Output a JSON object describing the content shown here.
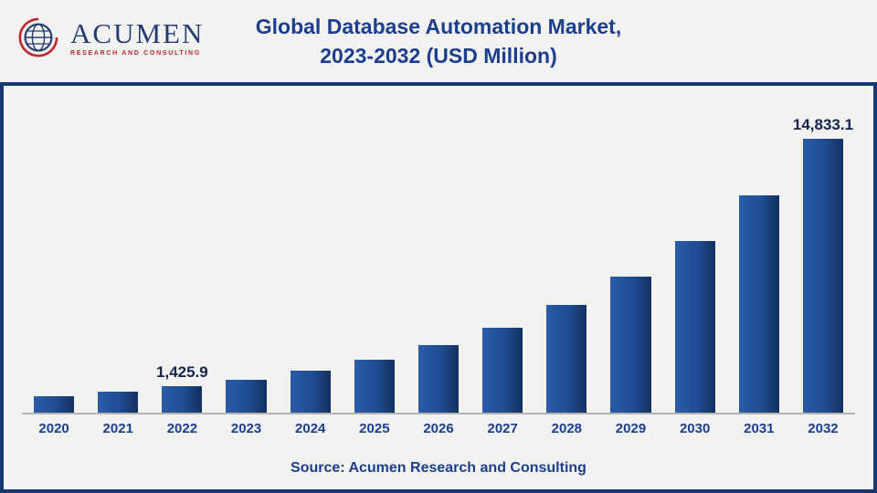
{
  "header": {
    "logo": {
      "name": "ACUMEN",
      "subtitle": "RESEARCH AND CONSULTING"
    },
    "title_line1": "Global Database Automation Market,",
    "title_line2": "2023-2032 (USD Million)"
  },
  "chart_data": {
    "type": "bar",
    "title": "Global Database Automation Market, 2023-2032 (USD Million)",
    "categories": [
      "2020",
      "2021",
      "2022",
      "2023",
      "2024",
      "2025",
      "2026",
      "2027",
      "2028",
      "2029",
      "2030",
      "2031",
      "2032"
    ],
    "values": [
      893,
      1129,
      1425.9,
      1802,
      2278,
      2880,
      3640,
      4601,
      5816,
      7351,
      9292,
      11745,
      14833.1
    ],
    "point_labels": [
      "",
      "",
      "1,425.9",
      "",
      "",
      "",
      "",
      "",
      "",
      "",
      "",
      "",
      "14,833.1"
    ],
    "xlabel": "",
    "ylabel": "",
    "units": "USD Million",
    "ylim": [
      0,
      15500
    ],
    "grid": false,
    "legend": false,
    "bar_color": "#1f4c92"
  },
  "footer": {
    "source": "Source: Acumen Research and Consulting"
  },
  "colors": {
    "background": "#f2f2f0",
    "navy": "#1c3e8f",
    "border": "#17386e",
    "bar": "#1f4c92",
    "bar_light": "#2b5ca8",
    "bar_dark": "#13315f",
    "label": "#15244d",
    "axis": "#b3b3b3",
    "logo_navy": "#233c72",
    "logo_red": "#c1272d"
  }
}
